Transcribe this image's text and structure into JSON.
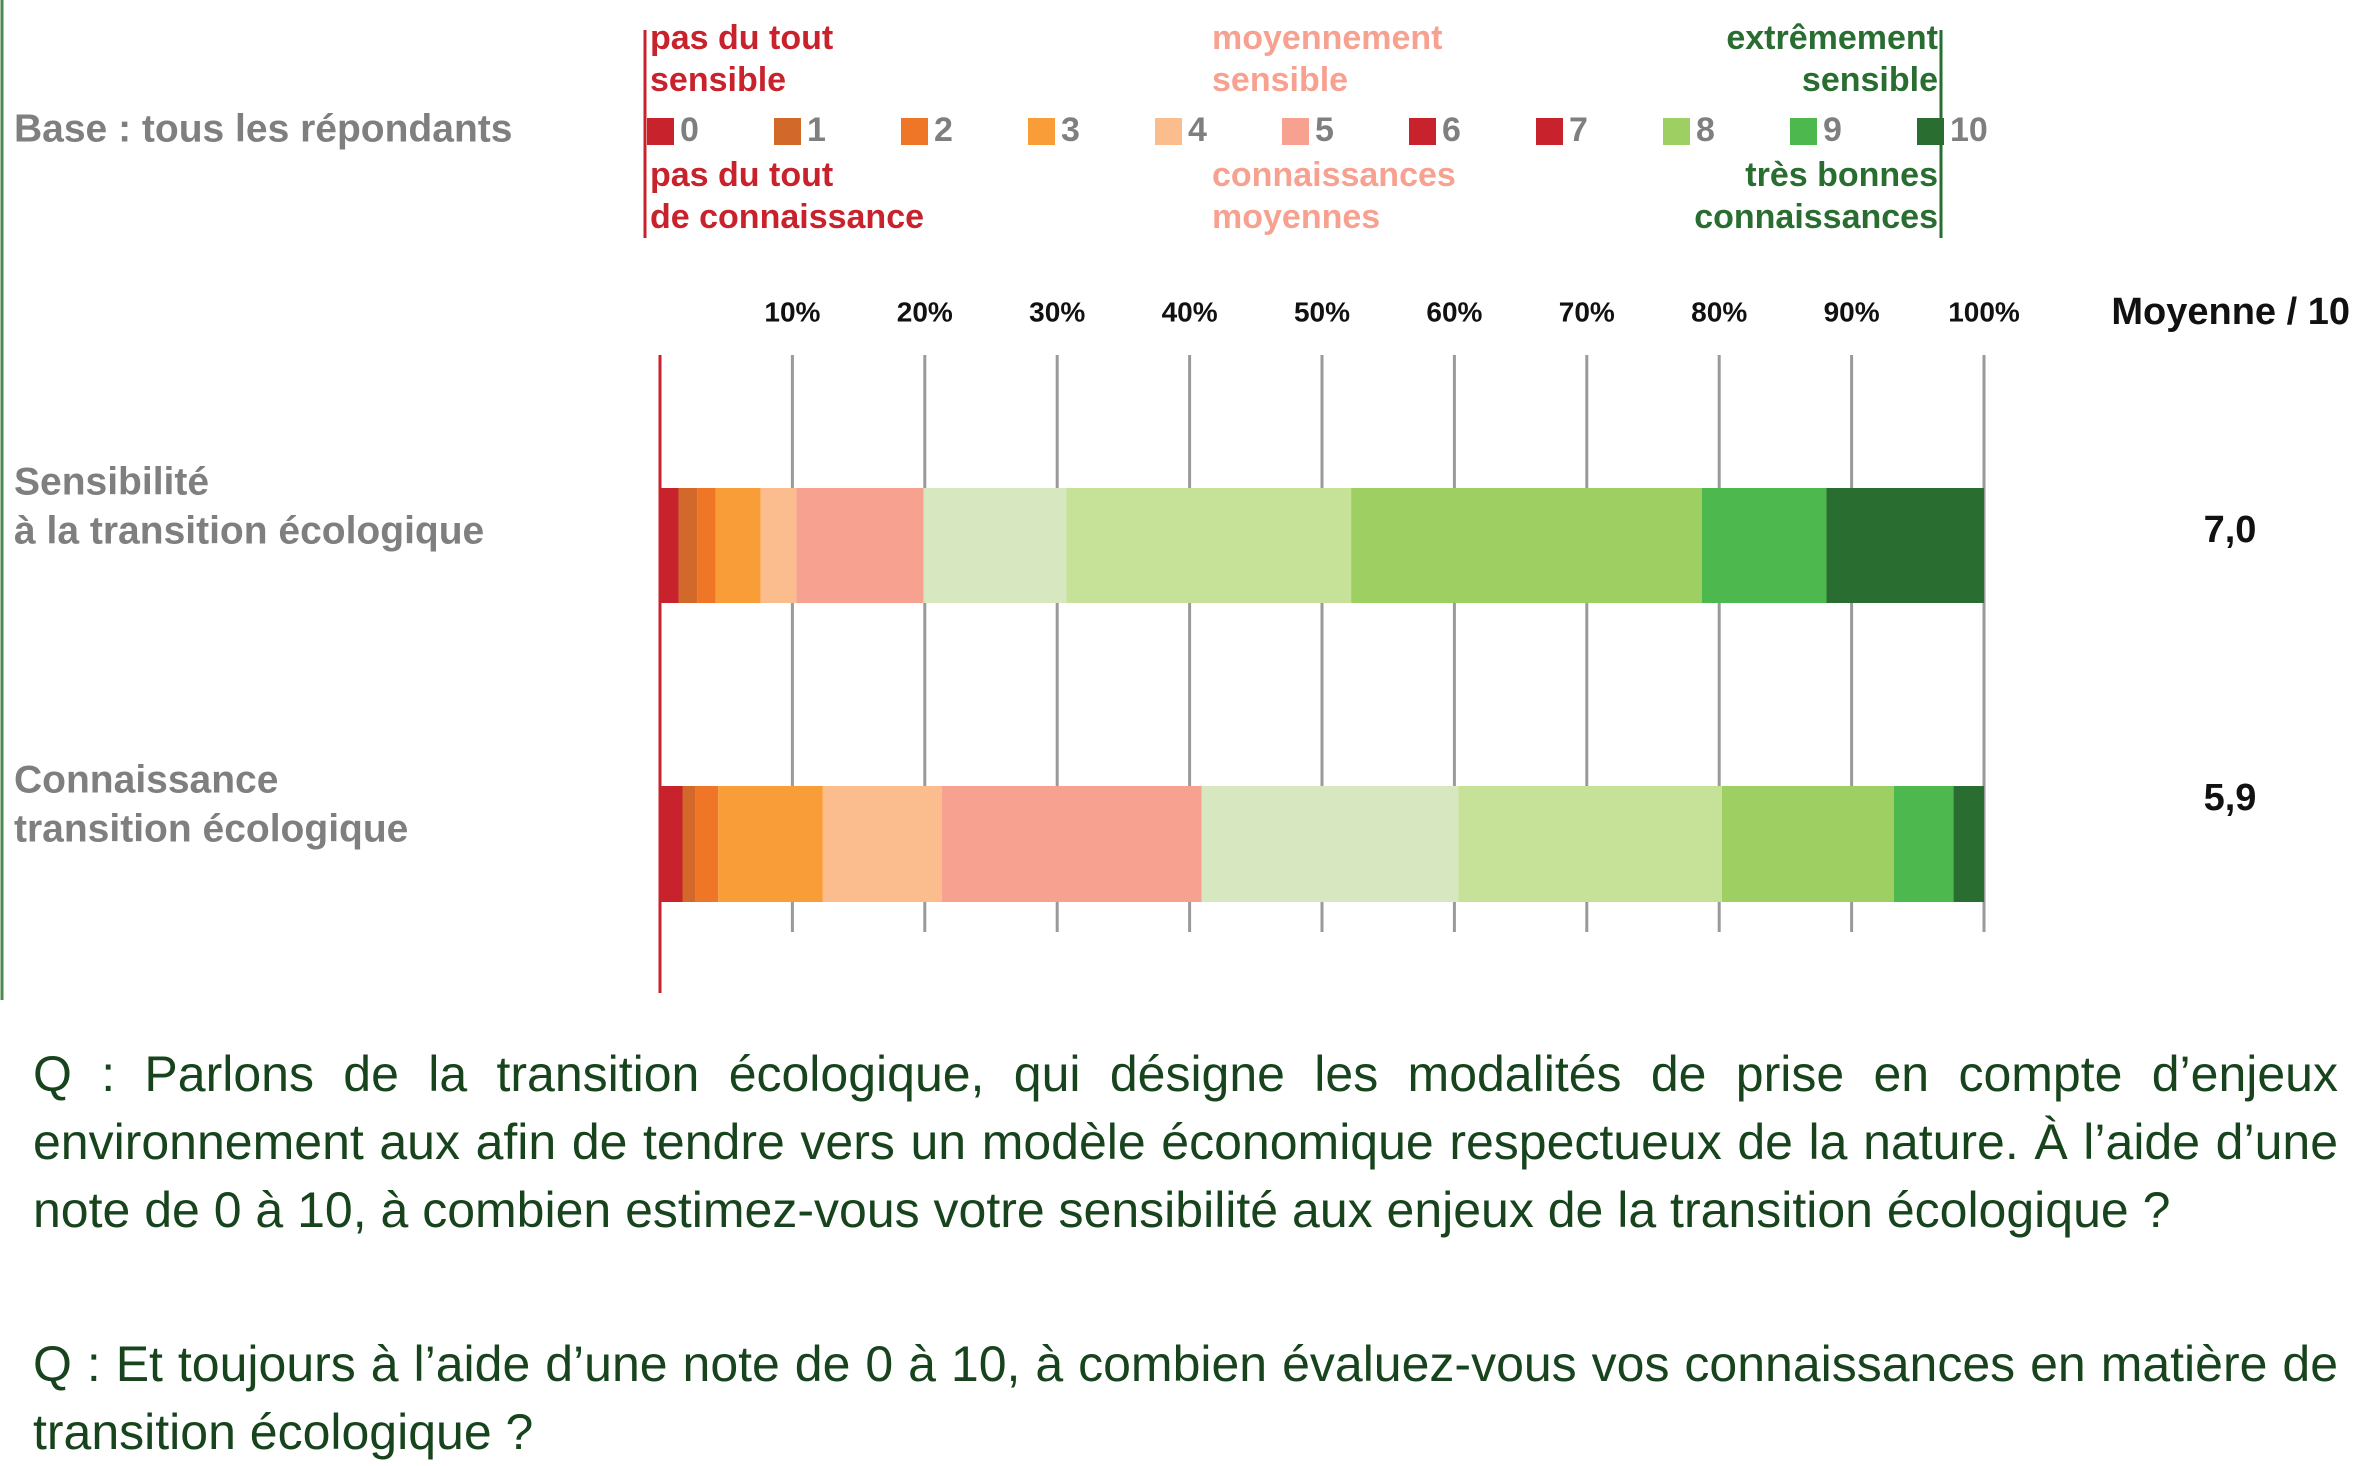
{
  "chart_data": {
    "type": "stacked_bar_horizontal",
    "subtitle": "Base : tous les répondants",
    "categories": [
      [
        "Sensibilité",
        "à la transition écologique"
      ],
      [
        "Connaissance",
        "transition écologique"
      ]
    ],
    "series": [
      {
        "name": "0",
        "color": "#c8232c",
        "values": [
          1.4,
          1.7
        ]
      },
      {
        "name": "1",
        "color": "#d2692a",
        "values": [
          1.4,
          1.0
        ]
      },
      {
        "name": "2",
        "color": "#ef7627",
        "values": [
          1.4,
          1.7
        ]
      },
      {
        "name": "3",
        "color": "#f99d38",
        "values": [
          3.4,
          7.9
        ]
      },
      {
        "name": "4",
        "color": "#fcbd8e",
        "values": [
          2.7,
          9.0
        ]
      },
      {
        "name": "5",
        "color": "#f7a191",
        "values": [
          9.6,
          19.6
        ]
      },
      {
        "name": "6",
        "color": "#d7e7c0",
        "values": [
          10.8,
          19.4
        ]
      },
      {
        "name": "7",
        "color": "#c6e198",
        "values": [
          21.5,
          19.9
        ]
      },
      {
        "name": "8",
        "color": "#9dcf62",
        "values": [
          26.5,
          13.0
        ]
      },
      {
        "name": "9",
        "color": "#4db84e",
        "values": [
          9.4,
          4.5
        ]
      },
      {
        "name": "10",
        "color": "#2a6d31",
        "values": [
          11.9,
          2.3
        ]
      }
    ],
    "legend_colors": [
      "#c8232c",
      "#d2692a",
      "#ef7627",
      "#f99d38",
      "#fcbd8e",
      "#f7a191",
      "#c8232c",
      "#c8232c",
      "#9dcf62",
      "#4db84e",
      "#2a6d31"
    ],
    "annotations": [
      [
        "pas du tout",
        "sensible"
      ],
      [
        "moyennement",
        "sensible"
      ],
      [
        "extrêmement",
        "sensible"
      ],
      [
        "pas du tout",
        "de connaissance"
      ],
      [
        "connaissances",
        "moyennes"
      ],
      [
        "très bonnes",
        "connaissances"
      ]
    ],
    "xlim": [
      0,
      100
    ],
    "xticks": [
      {
        "value": 10,
        "label": "10%"
      },
      {
        "value": 20,
        "label": "20%"
      },
      {
        "value": 30,
        "label": "30%"
      },
      {
        "value": 40,
        "label": "40%"
      },
      {
        "value": 50,
        "label": "50%"
      },
      {
        "value": 60,
        "label": "60%"
      },
      {
        "value": 70,
        "label": "70%"
      },
      {
        "value": 80,
        "label": "80%"
      },
      {
        "value": 90,
        "label": "90%"
      },
      {
        "value": 100,
        "label": "100%"
      }
    ],
    "grid": true,
    "mean_title": "Moyenne / 10",
    "means": [
      {
        "value": 7.0,
        "label": "7,0"
      },
      {
        "value": 5.9,
        "label": "5,9"
      }
    ]
  },
  "questions": [
    "Q : Parlons de la transition écologique, qui désigne les modalités de prise en compte d’enjeux environnement aux afin de tendre vers un modèle économique respectueux de la nature. À l’aide d’une note de 0 à 10, à combien estimez-vous votre sensibilité aux enjeux de la transition écologique ?",
    "Q : Et toujours à l’aide d’une note de 0 à 10, à combien évaluez-vous vos connaissances en matière de transition écologique ?"
  ]
}
